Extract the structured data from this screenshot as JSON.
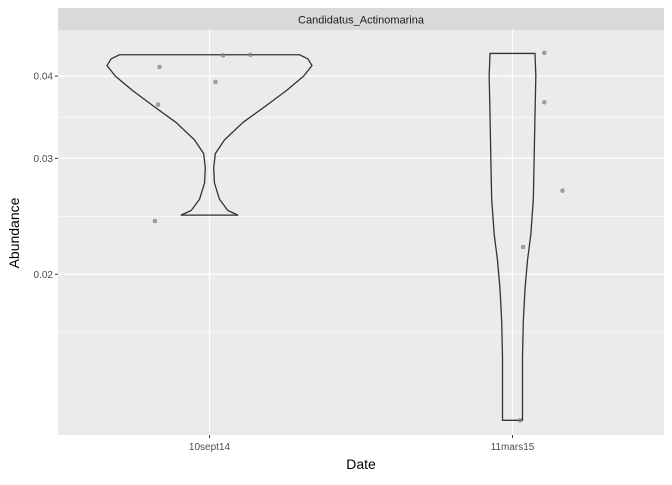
{
  "chart_data": {
    "type": "violin",
    "facet_title": "Candidatus_Actinomarina",
    "xlabel": "Date",
    "ylabel": "Abundance",
    "categories": [
      "10sept14",
      "11mars15"
    ],
    "y_scale": "log10",
    "y_ticks": [
      {
        "value": 0.02,
        "label": "0.02"
      },
      {
        "value": 0.03,
        "label": "0.03"
      },
      {
        "value": 0.04,
        "label": "0.04"
      }
    ],
    "ylim": [
      0.0114,
      0.047
    ],
    "grid": true,
    "colors": {
      "panel": "#ebebeb",
      "strip": "#d9d9d9",
      "grid": "#ffffff",
      "outline": "#333333",
      "point": "#888888"
    },
    "violins": [
      {
        "category": "10sept14",
        "profile": [
          {
            "y": 0.0246,
            "half_width": 0.34
          },
          {
            "y": 0.025,
            "half_width": 0.22
          },
          {
            "y": 0.026,
            "half_width": 0.12
          },
          {
            "y": 0.0275,
            "half_width": 0.06
          },
          {
            "y": 0.029,
            "half_width": 0.05
          },
          {
            "y": 0.0305,
            "half_width": 0.07
          },
          {
            "y": 0.032,
            "half_width": 0.18
          },
          {
            "y": 0.034,
            "half_width": 0.4
          },
          {
            "y": 0.036,
            "half_width": 0.67
          },
          {
            "y": 0.038,
            "half_width": 0.92
          },
          {
            "y": 0.04,
            "half_width": 1.13
          },
          {
            "y": 0.0415,
            "half_width": 1.23
          },
          {
            "y": 0.0425,
            "half_width": 1.18
          },
          {
            "y": 0.0431,
            "half_width": 1.08
          }
        ]
      },
      {
        "category": "11mars15",
        "profile": [
          {
            "y": 0.012,
            "half_width": 0.12
          },
          {
            "y": 0.0135,
            "half_width": 0.12
          },
          {
            "y": 0.015,
            "half_width": 0.12
          },
          {
            "y": 0.017,
            "half_width": 0.13
          },
          {
            "y": 0.019,
            "half_width": 0.15
          },
          {
            "y": 0.021,
            "half_width": 0.18
          },
          {
            "y": 0.023,
            "half_width": 0.22
          },
          {
            "y": 0.026,
            "half_width": 0.25
          },
          {
            "y": 0.03,
            "half_width": 0.26
          },
          {
            "y": 0.035,
            "half_width": 0.27
          },
          {
            "y": 0.04,
            "half_width": 0.28
          },
          {
            "y": 0.0433,
            "half_width": 0.27
          }
        ]
      }
    ],
    "points": [
      {
        "category": "10sept14",
        "y": 0.0413,
        "jitter": -0.33
      },
      {
        "category": "10sept14",
        "y": 0.0362,
        "jitter": -0.34
      },
      {
        "category": "10sept14",
        "y": 0.0241,
        "jitter": -0.36
      },
      {
        "category": "10sept14",
        "y": 0.0392,
        "jitter": 0.04
      },
      {
        "category": "10sept14",
        "y": 0.043,
        "jitter": 0.09
      },
      {
        "category": "10sept14",
        "y": 0.0431,
        "jitter": 0.27
      },
      {
        "category": "11mars15",
        "y": 0.0434,
        "jitter": 0.21
      },
      {
        "category": "11mars15",
        "y": 0.0365,
        "jitter": 0.21
      },
      {
        "category": "11mars15",
        "y": 0.0268,
        "jitter": 0.33
      },
      {
        "category": "11mars15",
        "y": 0.022,
        "jitter": 0.07
      },
      {
        "category": "11mars15",
        "y": 0.012,
        "jitter": 0.05
      }
    ]
  }
}
